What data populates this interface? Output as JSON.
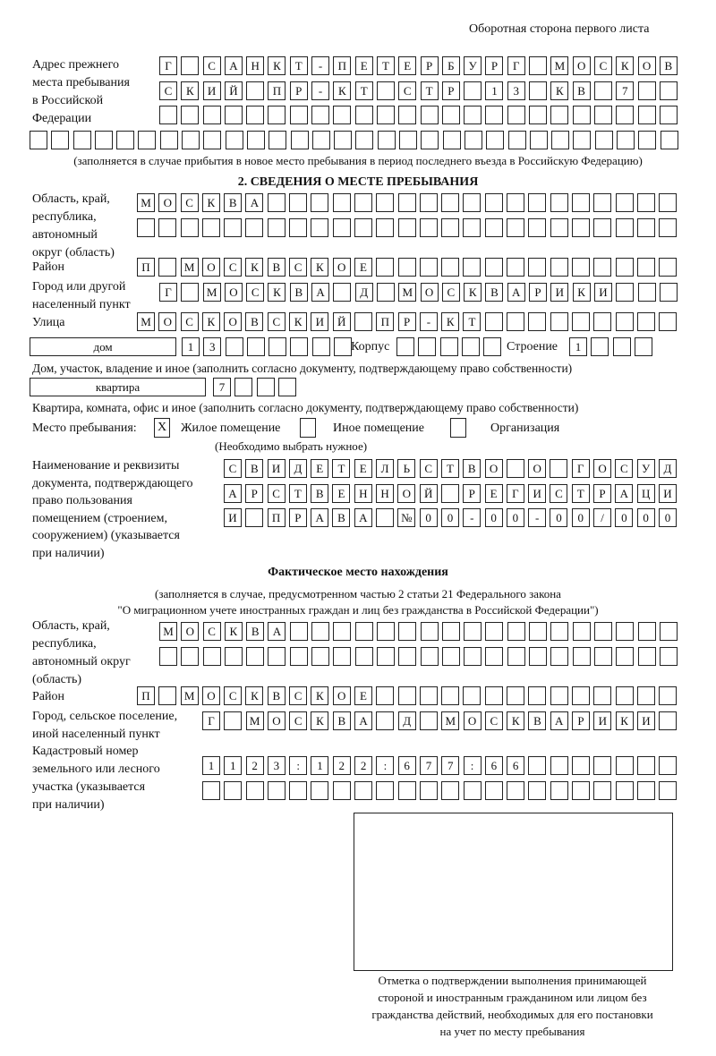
{
  "header": {
    "page_label": "Оборотная сторона первого листа"
  },
  "previous_address": {
    "label": [
      "Адрес прежнего",
      "места пребывания",
      "в Российской",
      "Федерации"
    ],
    "rows": [
      [
        "Г",
        "",
        "С",
        "А",
        "Н",
        "К",
        "Т",
        "-",
        "П",
        "Е",
        "Т",
        "Е",
        "Р",
        "Б",
        "У",
        "Р",
        "Г",
        "",
        "М",
        "О",
        "С",
        "К",
        "О",
        "В"
      ],
      [
        "С",
        "К",
        "И",
        "Й",
        "",
        "П",
        "Р",
        "-",
        "К",
        "Т",
        "",
        "С",
        "Т",
        "Р",
        "",
        "1",
        "3",
        "",
        "К",
        "В",
        "",
        "7",
        "",
        ""
      ],
      [
        "",
        "",
        "",
        "",
        "",
        "",
        "",
        "",
        "",
        "",
        "",
        "",
        "",
        "",
        "",
        "",
        "",
        "",
        "",
        "",
        "",
        "",
        "",
        ""
      ],
      [
        "",
        "",
        "",
        "",
        "",
        "",
        "",
        "",
        "",
        "",
        "",
        "",
        "",
        "",
        "",
        "",
        "",
        "",
        "",
        "",
        "",
        "",
        "",
        "",
        "",
        "",
        "",
        "",
        "",
        ""
      ]
    ],
    "note": "(заполняется в случае прибытия в новое место пребывания в период последнего въезда в Российскую Федерацию)"
  },
  "section2": {
    "title": "2. СВЕДЕНИЯ О МЕСТЕ ПРЕБЫВАНИЯ",
    "region_label": [
      "Область, край,",
      "республика,",
      "автономный",
      "округ (область)"
    ],
    "region_rows": [
      [
        "М",
        "О",
        "С",
        "К",
        "В",
        "А",
        "",
        "",
        "",
        "",
        "",
        "",
        "",
        "",
        "",
        "",
        "",
        "",
        "",
        "",
        "",
        "",
        "",
        "",
        ""
      ],
      [
        "",
        "",
        "",
        "",
        "",
        "",
        "",
        "",
        "",
        "",
        "",
        "",
        "",
        "",
        "",
        "",
        "",
        "",
        "",
        "",
        "",
        "",
        "",
        "",
        ""
      ]
    ],
    "district_label": "Район",
    "district_row": [
      "П",
      "",
      "М",
      "О",
      "С",
      "К",
      "В",
      "С",
      "К",
      "О",
      "Е",
      "",
      "",
      "",
      "",
      "",
      "",
      "",
      "",
      "",
      "",
      "",
      "",
      "",
      ""
    ],
    "city_label": [
      "Город или другой",
      "населенный пункт"
    ],
    "city_row": [
      "Г",
      "",
      "М",
      "О",
      "С",
      "К",
      "В",
      "А",
      "",
      "Д",
      "",
      "М",
      "О",
      "С",
      "К",
      "В",
      "А",
      "Р",
      "И",
      "К",
      "И",
      "",
      "",
      ""
    ],
    "street_label": "Улица",
    "street_row": [
      "М",
      "О",
      "С",
      "К",
      "О",
      "В",
      "С",
      "К",
      "И",
      "Й",
      "",
      "П",
      "Р",
      "-",
      "К",
      "Т",
      "",
      "",
      "",
      "",
      "",
      "",
      "",
      "",
      ""
    ],
    "house_type": "дом",
    "house_cells": [
      "1",
      "3",
      "",
      "",
      "",
      "",
      "",
      ""
    ],
    "building_label": "Корпус",
    "building_cells": [
      "",
      "",
      "",
      "",
      ""
    ],
    "structure_label": "Строение",
    "structure_cells": [
      "1",
      "",
      "",
      ""
    ],
    "house_note": "Дом, участок, владение и иное (заполнить согласно документу, подтверждающему право собственности)",
    "apartment_type": "квартира",
    "apartment_cells": [
      "7",
      "",
      "",
      ""
    ],
    "apartment_note": "Квартира, комната, офис и иное (заполнить согласно документу, подтверждающему право собственности)",
    "stay_place_label": "Место пребывания:",
    "options": [
      {
        "label": "Жилое помещение",
        "mark": "X"
      },
      {
        "label": "Иное помещение",
        "mark": ""
      },
      {
        "label": "Организация",
        "mark": ""
      }
    ],
    "choose_note": "(Необходимо выбрать нужное)",
    "document_label": [
      "Наименование и реквизиты",
      "документа, подтверждающего",
      "право пользования",
      "помещением (строением,",
      "сооружением) (указывается",
      "при наличии)"
    ],
    "document_rows": [
      [
        "С",
        "В",
        "И",
        "Д",
        "Е",
        "Т",
        "Е",
        "Л",
        "Ь",
        "С",
        "Т",
        "В",
        "О",
        "",
        "О",
        "",
        "Г",
        "О",
        "С",
        "У",
        "Д"
      ],
      [
        "А",
        "Р",
        "С",
        "Т",
        "В",
        "Е",
        "Н",
        "Н",
        "О",
        "Й",
        "",
        "Р",
        "Е",
        "Г",
        "И",
        "С",
        "Т",
        "Р",
        "А",
        "Ц",
        "И"
      ],
      [
        "И",
        "",
        "П",
        "Р",
        "А",
        "В",
        "А",
        "",
        "№",
        "0",
        "0",
        "-",
        "0",
        "0",
        "-",
        "0",
        "0",
        "/",
        "0",
        "0",
        "0"
      ]
    ]
  },
  "actual_location": {
    "title": "Фактическое место нахождения",
    "note1": "(заполняется в случае, предусмотренном частью 2 статьи 21 Федерального закона",
    "note2": "\"О миграционном учете иностранных граждан и лиц без гражданства в Российской Федерации\")",
    "region_label": [
      "Область, край,",
      "республика,",
      "автономный округ",
      "(область)"
    ],
    "region_rows": [
      [
        "М",
        "О",
        "С",
        "К",
        "В",
        "А",
        "",
        "",
        "",
        "",
        "",
        "",
        "",
        "",
        "",
        "",
        "",
        "",
        "",
        "",
        "",
        "",
        "",
        ""
      ],
      [
        "",
        "",
        "",
        "",
        "",
        "",
        "",
        "",
        "",
        "",
        "",
        "",
        "",
        "",
        "",
        "",
        "",
        "",
        "",
        "",
        "",
        "",
        "",
        ""
      ]
    ],
    "district_label": "Район",
    "district_row": [
      "П",
      "",
      "М",
      "О",
      "С",
      "К",
      "В",
      "С",
      "К",
      "О",
      "Е",
      "",
      "",
      "",
      "",
      "",
      "",
      "",
      "",
      "",
      "",
      "",
      "",
      "",
      ""
    ],
    "city_label": [
      "Город, сельское поселение,",
      "иной населенный пункт"
    ],
    "city_row": [
      "Г",
      "",
      "М",
      "О",
      "С",
      "К",
      "В",
      "А",
      "",
      "Д",
      "",
      "М",
      "О",
      "С",
      "К",
      "В",
      "А",
      "Р",
      "И",
      "К",
      "И",
      ""
    ],
    "cadastral_label": [
      "Кадастровый номер",
      "земельного или лесного",
      "участка (указывается",
      "при наличии)"
    ],
    "cadastral_rows": [
      [
        "1",
        "1",
        "2",
        "3",
        ":",
        "1",
        "2",
        "2",
        ":",
        "6",
        "7",
        "7",
        ":",
        "6",
        "6",
        "",
        "",
        "",
        "",
        "",
        "",
        ""
      ],
      [
        "",
        "",
        "",
        "",
        "",
        "",
        "",
        "",
        "",
        "",
        "",
        "",
        "",
        "",
        "",
        "",
        "",
        "",
        "",
        "",
        "",
        ""
      ]
    ]
  },
  "stamp": {
    "caption": [
      "Отметка о подтверждении выполнения принимающей",
      "стороной и иностранным гражданином или лицом без",
      "гражданства действий, необходимых для его постановки",
      "на учет по месту пребывания"
    ]
  }
}
